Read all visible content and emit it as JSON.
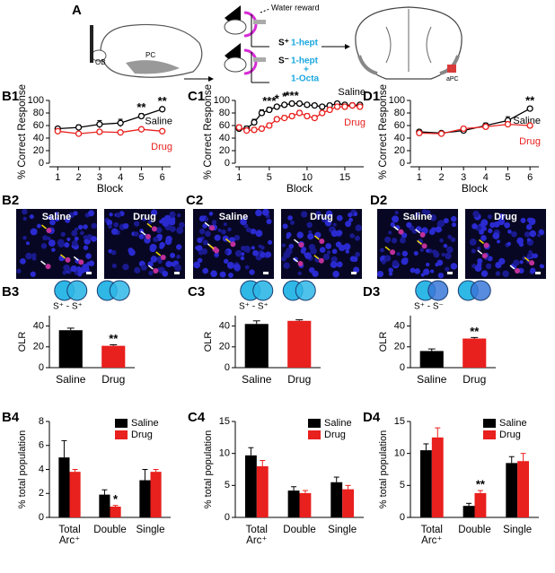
{
  "diagram": {
    "panel": "A",
    "texts": [
      "OB",
      "PC",
      "Water reward",
      "S⁺",
      "1-hept",
      "S⁻",
      "1-hept",
      "+",
      "1-Octa",
      "aPC"
    ]
  },
  "micrographs": [
    {
      "panel": "B2",
      "labels": [
        "Saline",
        "Drug"
      ]
    },
    {
      "panel": "C2",
      "labels": [
        "Saline",
        "Drug"
      ]
    },
    {
      "panel": "D2",
      "labels": [
        "Saline",
        "Drug"
      ]
    }
  ],
  "chart_data": [
    {
      "type": "line",
      "panel": "B1",
      "xlabel": "Block",
      "ylabel": "% Correct Response",
      "x": [
        1,
        2,
        3,
        4,
        5,
        6
      ],
      "xlim": [
        0.6,
        6.4
      ],
      "xticks": [
        1,
        2,
        3,
        4,
        5,
        6
      ],
      "ylim": [
        0,
        100
      ],
      "yticks": [
        0,
        20,
        40,
        60,
        80,
        100
      ],
      "series": [
        {
          "name": "Saline",
          "color": "#000000",
          "values": [
            55,
            57,
            62,
            64,
            75,
            86
          ],
          "errors": [
            3,
            4,
            6,
            6,
            4,
            3
          ]
        },
        {
          "name": "Drug",
          "color": "#e8201e",
          "values": [
            51,
            47,
            50,
            49,
            54,
            51
          ],
          "errors": [
            3,
            3,
            3,
            3,
            3,
            3
          ]
        }
      ],
      "annotations": [
        {
          "x": 5,
          "label": "**"
        },
        {
          "x": 6,
          "label": "**"
        }
      ]
    },
    {
      "type": "line",
      "panel": "C1",
      "xlabel": "Block",
      "ylabel": "% Correct Response",
      "x": [
        1,
        2,
        3,
        4,
        5,
        6,
        7,
        8,
        9,
        10,
        11,
        12,
        13,
        14,
        15,
        16,
        17
      ],
      "xlim": [
        0.5,
        17.5
      ],
      "xticks": [
        1,
        5,
        10,
        15
      ],
      "ylim": [
        0,
        100
      ],
      "yticks": [
        0,
        20,
        40,
        60,
        80,
        100
      ],
      "series": [
        {
          "name": "Saline",
          "color": "#000000",
          "values": [
            55,
            55,
            65,
            80,
            85,
            90,
            93,
            95,
            95,
            93,
            92,
            90,
            92,
            95,
            93,
            92,
            93
          ],
          "errors": [
            4,
            4,
            5,
            5,
            4,
            3,
            3,
            3,
            3,
            3,
            3,
            3,
            3,
            3,
            3,
            3,
            3
          ]
        },
        {
          "name": "Drug",
          "color": "#e8201e",
          "values": [
            57,
            52,
            53,
            55,
            60,
            70,
            72,
            75,
            80,
            75,
            72,
            80,
            85,
            90,
            90,
            92,
            90
          ],
          "errors": [
            4,
            4,
            4,
            4,
            4,
            4,
            4,
            4,
            4,
            4,
            4,
            4,
            4,
            4,
            4,
            4,
            4
          ]
        }
      ],
      "annotations": [
        {
          "x": 5,
          "label": "***"
        },
        {
          "x": 6,
          "label": "*"
        },
        {
          "x": 7,
          "label": "*"
        },
        {
          "x": 8,
          "label": "***"
        }
      ]
    },
    {
      "type": "line",
      "panel": "D1",
      "xlabel": "Block",
      "ylabel": "% Correct Response",
      "x": [
        1,
        2,
        3,
        4,
        5,
        6
      ],
      "xlim": [
        0.6,
        6.4
      ],
      "xticks": [
        1,
        2,
        3,
        4,
        5,
        6
      ],
      "ylim": [
        0,
        100
      ],
      "yticks": [
        0,
        20,
        40,
        60,
        80,
        100
      ],
      "series": [
        {
          "name": "Saline",
          "color": "#000000",
          "values": [
            50,
            48,
            52,
            60,
            68,
            87
          ],
          "errors": [
            3,
            3,
            3,
            4,
            6,
            3
          ]
        },
        {
          "name": "Drug",
          "color": "#e8201e",
          "values": [
            48,
            47,
            55,
            58,
            62,
            60
          ],
          "errors": [
            3,
            3,
            3,
            4,
            4,
            3
          ]
        }
      ],
      "annotations": [
        {
          "x": 6,
          "label": "**"
        }
      ]
    },
    {
      "type": "bar",
      "panel": "B3",
      "ylabel": "OLR",
      "venn_label": "S⁺ - S⁺",
      "categories": [
        "Saline",
        "Drug"
      ],
      "values": [
        36,
        21
      ],
      "errors": [
        2,
        1
      ],
      "colors": [
        "#000000",
        "#e8201e"
      ],
      "ylim": [
        0,
        50
      ],
      "yticks": [
        0,
        20,
        40
      ],
      "annotations": [
        {
          "index": 1,
          "label": "**"
        }
      ]
    },
    {
      "type": "bar",
      "panel": "C3",
      "ylabel": "OLR",
      "venn_label": "S⁺ - S⁺",
      "categories": [
        "Saline",
        "Drug"
      ],
      "values": [
        42,
        45
      ],
      "errors": [
        3,
        1
      ],
      "colors": [
        "#000000",
        "#e8201e"
      ],
      "ylim": [
        0,
        50
      ],
      "yticks": [
        0,
        20,
        40
      ],
      "annotations": []
    },
    {
      "type": "bar",
      "panel": "D3",
      "ylabel": "OLR",
      "venn_label": "S⁺ - S⁻",
      "categories": [
        "Saline",
        "Drug"
      ],
      "values": [
        16,
        28
      ],
      "errors": [
        2,
        1
      ],
      "colors": [
        "#000000",
        "#e8201e"
      ],
      "ylim": [
        0,
        50
      ],
      "yticks": [
        0,
        20,
        40
      ],
      "annotations": [
        {
          "index": 1,
          "label": "**"
        }
      ]
    },
    {
      "type": "grouped_bar",
      "panel": "B4",
      "ylabel": "% total population",
      "legend": "top-right",
      "categories": [
        "Total\nArc⁺",
        "Double",
        "Single"
      ],
      "ylim": [
        0,
        8
      ],
      "yticks": [
        0,
        2,
        4,
        6,
        8
      ],
      "series": [
        {
          "name": "Saline",
          "color": "#000000",
          "values": [
            5.0,
            1.9,
            3.1
          ],
          "errors": [
            1.4,
            0.4,
            0.9
          ]
        },
        {
          "name": "Drug",
          "color": "#e8201e",
          "values": [
            3.8,
            0.9,
            3.8
          ],
          "errors": [
            0.2,
            0.1,
            0.2
          ]
        }
      ],
      "annotations": [
        {
          "series": 1,
          "index": 1,
          "label": "*"
        }
      ]
    },
    {
      "type": "grouped_bar",
      "panel": "C4",
      "ylabel": "% total population",
      "legend": "top-right",
      "categories": [
        "Total\nArc⁺",
        "Double",
        "Single"
      ],
      "ylim": [
        0,
        15
      ],
      "yticks": [
        0,
        5,
        10,
        15
      ],
      "series": [
        {
          "name": "Saline",
          "color": "#000000",
          "values": [
            9.7,
            4.2,
            5.5
          ],
          "errors": [
            1.2,
            0.6,
            0.8
          ]
        },
        {
          "name": "Drug",
          "color": "#e8201e",
          "values": [
            8.0,
            3.8,
            4.4
          ],
          "errors": [
            0.9,
            0.4,
            0.6
          ]
        }
      ],
      "annotations": []
    },
    {
      "type": "grouped_bar",
      "panel": "D4",
      "ylabel": "% total population",
      "legend": "top-right",
      "categories": [
        "Total\nArc⁺",
        "Double",
        "Single"
      ],
      "ylim": [
        0,
        15
      ],
      "yticks": [
        0,
        5,
        10,
        15
      ],
      "series": [
        {
          "name": "Saline",
          "color": "#000000",
          "values": [
            10.5,
            1.8,
            8.5
          ],
          "errors": [
            1.0,
            0.4,
            1.0
          ]
        },
        {
          "name": "Drug",
          "color": "#e8201e",
          "values": [
            12.5,
            3.8,
            8.8
          ],
          "errors": [
            1.5,
            0.4,
            1.2
          ]
        }
      ],
      "annotations": [
        {
          "series": 1,
          "index": 1,
          "label": "**"
        }
      ]
    }
  ]
}
